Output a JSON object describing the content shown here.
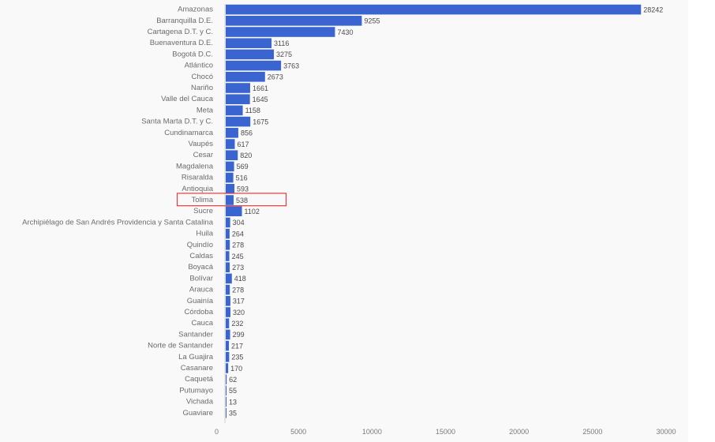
{
  "chart_data": {
    "type": "bar",
    "orientation": "horizontal",
    "categories": [
      "Amazonas",
      "Barranquilla D.E.",
      "Cartagena D.T. y C.",
      "Buenaventura D.E.",
      "Bogotá D.C.",
      "Atlántico",
      "Chocó",
      "Nariño",
      "Valle del Cauca",
      "Meta",
      "Santa Marta D.T. y C.",
      "Cundinamarca",
      "Vaupés",
      "Cesar",
      "Magdalena",
      "Risaralda",
      "Antioquia",
      "Tolima",
      "Sucre",
      "Archipiélago de San Andrés Providencia y Santa Catalina",
      "Huila",
      "Quindío",
      "Caldas",
      "Boyacá",
      "Bolívar",
      "Arauca",
      "Guainía",
      "Córdoba",
      "Cauca",
      "Santander",
      "Norte de Santander",
      "La Guajira",
      "Casanare",
      "Caquetá",
      "Putumayo",
      "Vichada",
      "Guaviare"
    ],
    "values": [
      28242,
      9255,
      7430,
      3116,
      3275,
      3763,
      2673,
      1661,
      1645,
      1158,
      1675,
      856,
      617,
      820,
      569,
      516,
      593,
      538,
      1102,
      304,
      264,
      278,
      245,
      273,
      418,
      278,
      317,
      320,
      232,
      299,
      217,
      235,
      170,
      62,
      55,
      13,
      35
    ],
    "highlight": "Tolima",
    "highlight_color": "#e03c3c",
    "bar_color": "#3a65d0",
    "xlim": [
      0,
      30000
    ],
    "xticks": [
      "0",
      "5000",
      "10000",
      "15000",
      "20000",
      "25000",
      "30000"
    ],
    "grid": false,
    "title": "",
    "xlabel": "",
    "ylabel": ""
  }
}
